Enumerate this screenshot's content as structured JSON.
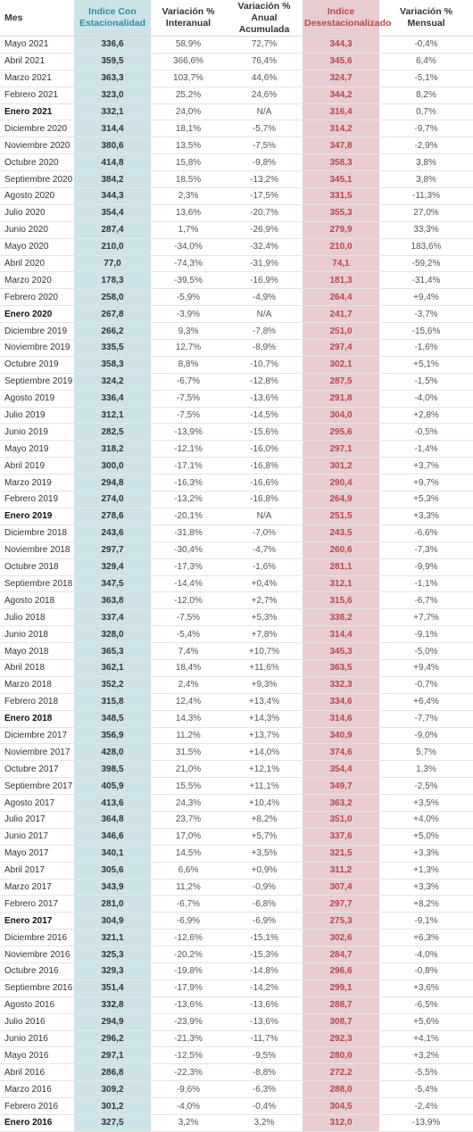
{
  "table": {
    "headers": {
      "mes": "Mes",
      "con": "Indice Con Estacionalidad",
      "int": "Variación % Interanual",
      "acu": "Variación % Anual Acumulada",
      "des": "Indice Desestacionalizado",
      "men": "Variación % Mensual"
    },
    "colors": {
      "con_bg": "#cde3e8",
      "con_text": "#2e8fa3",
      "des_bg": "#e8cdd0",
      "des_text": "#b64750"
    },
    "rows": [
      [
        "Mayo 2021",
        "336,6",
        "58,9%",
        "72,7%",
        "344,3",
        "-0,4%"
      ],
      [
        "Abril 2021",
        "359,5",
        "366,6%",
        "76,4%",
        "345,6",
        "6,4%"
      ],
      [
        "Marzo 2021",
        "363,3",
        "103,7%",
        "44,6%",
        "324,7",
        "-5,1%"
      ],
      [
        "Febrero 2021",
        "323,0",
        "25,2%",
        "24,6%",
        "344,2",
        "8,2%"
      ],
      [
        "Enero 2021",
        "332,1",
        "24,0%",
        "N/A",
        "316,4",
        "0,7%"
      ],
      [
        "Diciembre 2020",
        "314,4",
        "18,1%",
        "-5,7%",
        "314,2",
        "-9,7%"
      ],
      [
        "Noviembre 2020",
        "380,6",
        "13,5%",
        "-7,5%",
        "347,8",
        "-2,9%"
      ],
      [
        "Octubre 2020",
        "414,8",
        "15,8%",
        "-9,8%",
        "358,3",
        "3,8%"
      ],
      [
        "Septiembre 2020",
        "384,2",
        "18,5%",
        "-13,2%",
        "345,1",
        "3,8%"
      ],
      [
        "Agosto 2020",
        "344,3",
        "2,3%",
        "-17,5%",
        "331,5",
        "-11,3%"
      ],
      [
        "Julio 2020",
        "354,4",
        "13,6%",
        "-20,7%",
        "355,3",
        "27,0%"
      ],
      [
        "Junio 2020",
        "287,4",
        "1,7%",
        "-26,9%",
        "279,9",
        "33,3%"
      ],
      [
        "Mayo 2020",
        "210,0",
        "-34,0%",
        "-32,4%",
        "210,0",
        "183,6%"
      ],
      [
        "Abril 2020",
        "77,0",
        "-74,3%",
        "-31,9%",
        "74,1",
        "-59,2%"
      ],
      [
        "Marzo 2020",
        "178,3",
        "-39,5%",
        "-16,9%",
        "181,3",
        "-31,4%"
      ],
      [
        "Febrero 2020",
        "258,0",
        "-5,9%",
        "-4,9%",
        "264,4",
        "+9,4%"
      ],
      [
        "Enero 2020",
        "267,8",
        "-3,9%",
        "N/A",
        "241,7",
        "-3,7%"
      ],
      [
        "Diciembre 2019",
        "266,2",
        "9,3%",
        "-7,8%",
        "251,0",
        "-15,6%"
      ],
      [
        "Noviembre 2019",
        "335,5",
        "12,7%",
        "-8,9%",
        "297,4",
        "-1,6%"
      ],
      [
        "Octubre 2019",
        "358,3",
        "8,8%",
        "-10,7%",
        "302,1",
        "+5,1%"
      ],
      [
        "Septiembre 2019",
        "324,2",
        "-6,7%",
        "-12,8%",
        "287,5",
        "-1,5%"
      ],
      [
        "Agosto 2019",
        "336,4",
        "-7,5%",
        "-13,6%",
        "291,8",
        "-4,0%"
      ],
      [
        "Julio 2019",
        "312,1",
        "-7,5%",
        "-14,5%",
        "304,0",
        "+2,8%"
      ],
      [
        "Junio 2019",
        "282,5",
        "-13,9%",
        "-15,6%",
        "295,6",
        "-0,5%"
      ],
      [
        "Mayo 2019",
        "318,2",
        "-12,1%",
        "-16,0%",
        "297,1",
        "-1,4%"
      ],
      [
        "Abril 2019",
        "300,0",
        "-17,1%",
        "-16,8%",
        "301,2",
        "+3,7%"
      ],
      [
        "Marzo 2019",
        "294,8",
        "-16,3%",
        "-16,6%",
        "290,4",
        "+9,7%"
      ],
      [
        "Febrero 2019",
        "274,0",
        "-13,2%",
        "-16,8%",
        "264,9",
        "+5,3%"
      ],
      [
        "Enero 2019",
        "278,6",
        "-20,1%",
        "N/A",
        "251,5",
        "+3,3%"
      ],
      [
        "Diciembre 2018",
        "243,6",
        "-31,8%",
        "-7,0%",
        "243,5",
        "-6,6%"
      ],
      [
        "Noviembre 2018",
        "297,7",
        "-30,4%",
        "-4,7%",
        "260,6",
        "-7,3%"
      ],
      [
        "Octubre 2018",
        "329,4",
        "-17,3%",
        "-1,6%",
        "281,1",
        "-9,9%"
      ],
      [
        "Septiembre 2018",
        "347,5",
        "-14,4%",
        "+0,4%",
        "312,1",
        "-1,1%"
      ],
      [
        "Agosto 2018",
        "363,8",
        "-12,0%",
        "+2,7%",
        "315,6",
        "-6,7%"
      ],
      [
        "Julio 2018",
        "337,4",
        "-7,5%",
        "+5,3%",
        "338,2",
        "+7,7%"
      ],
      [
        "Junio 2018",
        "328,0",
        "-5,4%",
        "+7,8%",
        "314,4",
        "-9,1%"
      ],
      [
        "Mayo 2018",
        "365,3",
        "7,4%",
        "+10,7%",
        "345,3",
        "-5,0%"
      ],
      [
        "Abril 2018",
        "362,1",
        "18,4%",
        "+11,6%",
        "363,5",
        "+9,4%"
      ],
      [
        "Marzo 2018",
        "352,2",
        "2,4%",
        "+9,3%",
        "332,3",
        "-0,7%"
      ],
      [
        "Febrero 2018",
        "315,8",
        "12,4%",
        "+13,4%",
        "334,6",
        "+6,4%"
      ],
      [
        "Enero 2018",
        "348,5",
        "14,3%",
        "+14,3%",
        "314,6",
        "-7,7%"
      ],
      [
        "Diciembre 2017",
        "356,9",
        "11,2%",
        "+13,7%",
        "340,9",
        "-9,0%"
      ],
      [
        "Noviembre 2017",
        "428,0",
        "31,5%",
        "+14,0%",
        "374,6",
        "5,7%"
      ],
      [
        "Octubre 2017",
        "398,5",
        "21,0%",
        "+12,1%",
        "354,4",
        "1,3%"
      ],
      [
        "Septiembre 2017",
        "405,9",
        "15,5%",
        "+11,1%",
        "349,7",
        "-2,5%"
      ],
      [
        "Agosto 2017",
        "413,6",
        "24,3%",
        "+10,4%",
        "363,2",
        "+3,5%"
      ],
      [
        "Julio 2017",
        "364,8",
        "23,7%",
        "+8,2%",
        "351,0",
        "+4,0%"
      ],
      [
        "Junio 2017",
        "346,6",
        "17,0%",
        "+5,7%",
        "337,6",
        "+5,0%"
      ],
      [
        "Mayo 2017",
        "340,1",
        "14,5%",
        "+3,5%",
        "321,5",
        "+3,3%"
      ],
      [
        "Abril 2017",
        "305,6",
        "6,6%",
        "+0,9%",
        "311,2",
        "+1,3%"
      ],
      [
        "Marzo 2017",
        "343,9",
        "11,2%",
        "-0,9%",
        "307,4",
        "+3,3%"
      ],
      [
        "Febrero 2017",
        "281,0",
        "-6,7%",
        "-6,8%",
        "297,7",
        "+8,2%"
      ],
      [
        "Enero 2017",
        "304,9",
        "-6,9%",
        "-6,9%",
        "275,3",
        "-9,1%"
      ],
      [
        "Diciembre 2016",
        "321,1",
        "-12,6%",
        "-15,1%",
        "302,6",
        "+6,3%"
      ],
      [
        "Noviembre 2016",
        "325,3",
        "-20,2%",
        "-15,3%",
        "284,7",
        "-4,0%"
      ],
      [
        "Octubre 2016",
        "329,3",
        "-19,8%",
        "-14,8%",
        "296,6",
        "-0,8%"
      ],
      [
        "Septiembre 2016",
        "351,4",
        "-17,9%",
        "-14,2%",
        "299,1",
        "+3,6%"
      ],
      [
        "Agosto 2016",
        "332,8",
        "-13,6%",
        "-13,6%",
        "288,7",
        "-6,5%"
      ],
      [
        "Julio 2016",
        "294,9",
        "-23,9%",
        "-13,6%",
        "308,7",
        "+5,6%"
      ],
      [
        "Junio 2016",
        "296,2",
        "-21,3%",
        "-11,7%",
        "292,3",
        "+4,1%"
      ],
      [
        "Mayo 2016",
        "297,1",
        "-12,5%",
        "-9,5%",
        "280,0",
        "+3,2%"
      ],
      [
        "Abril 2016",
        "286,8",
        "-22,3%",
        "-8,8%",
        "272,2",
        "-5,5%"
      ],
      [
        "Marzo 2016",
        "309,2",
        "-9,6%",
        "-6,3%",
        "288,0",
        "-5,4%"
      ],
      [
        "Febrero 2016",
        "301,2",
        "-4,0%",
        "-0,4%",
        "304,5",
        "-2,4%"
      ],
      [
        "Enero 2016",
        "327,5",
        "3,2%",
        "3,2%",
        "312,0",
        "-13,9%"
      ]
    ],
    "bold_rows": [
      "Enero 2021",
      "Enero 2020",
      "Enero 2019",
      "Enero 2018",
      "Enero 2017",
      "Enero 2016"
    ]
  }
}
